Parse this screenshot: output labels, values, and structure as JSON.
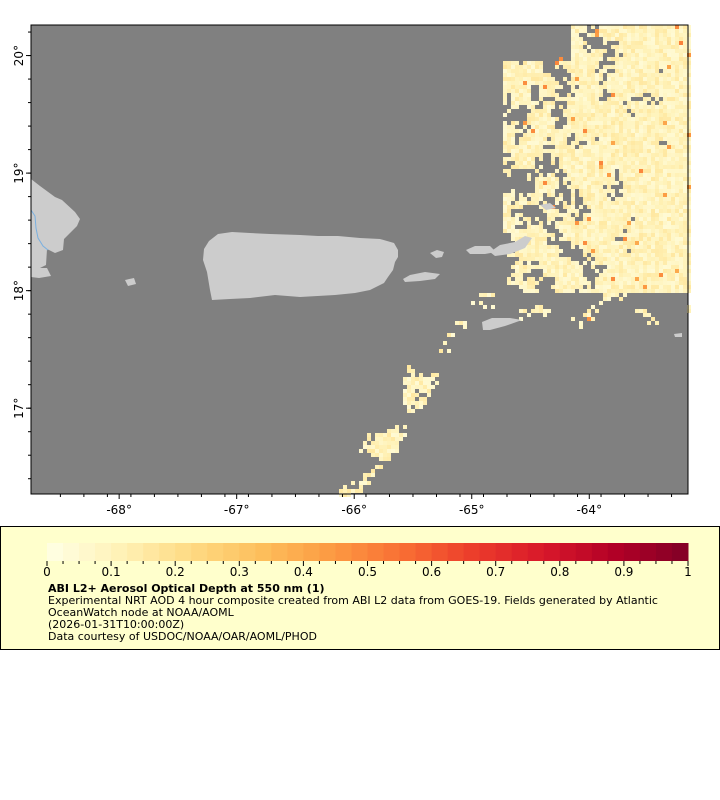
{
  "map": {
    "lon_range": [
      -68.75,
      -63.16
    ],
    "lat_range": [
      16.27,
      20.26
    ],
    "lon_ticks": [
      {
        "value": -68,
        "label": "-68°"
      },
      {
        "value": -67,
        "label": "-67°"
      },
      {
        "value": -66,
        "label": "-66°"
      },
      {
        "value": -65,
        "label": "-65°"
      },
      {
        "value": -64,
        "label": "-64°"
      }
    ],
    "lat_ticks": [
      {
        "value": 20,
        "label": "20°"
      },
      {
        "value": 19,
        "label": "19°"
      },
      {
        "value": 18,
        "label": "18°"
      },
      {
        "value": 17,
        "label": "17°"
      }
    ],
    "colors": {
      "ocean": "#808080",
      "land": "#cccccc",
      "river": "#7ab0e0",
      "legend_bg": "#ffffcc"
    }
  },
  "colorbar": {
    "range": [
      0,
      1
    ],
    "ticks": [
      {
        "value": 0,
        "label": "0"
      },
      {
        "value": 0.1,
        "label": "0.1"
      },
      {
        "value": 0.2,
        "label": "0.2"
      },
      {
        "value": 0.3,
        "label": "0.3"
      },
      {
        "value": 0.4,
        "label": "0.4"
      },
      {
        "value": 0.5,
        "label": "0.5"
      },
      {
        "value": 0.6,
        "label": "0.6"
      },
      {
        "value": 0.7,
        "label": "0.7"
      },
      {
        "value": 0.8,
        "label": "0.8"
      },
      {
        "value": 0.9,
        "label": "0.9"
      },
      {
        "value": 1,
        "label": "1"
      }
    ],
    "palette": [
      "#ffffe5",
      "#fff2b8",
      "#fedb84",
      "#fdbf5c",
      "#fc9a42",
      "#f96e34",
      "#ec3c2b",
      "#d7172a",
      "#b10026",
      "#800026"
    ]
  },
  "legend": {
    "title": "ABI L2+ Aerosol Optical Depth at 550 nm (1)",
    "line1": "Experimental NRT AOD 4 hour composite created from ABI L2 data from GOES-19. Fields generated by Atlantic",
    "line2": "OceanWatch node at NOAA/AOML",
    "line3": "(2026-01-31T10:00:00Z)",
    "line4": "Data courtesy of USDOC/NOAA/OAR/AOML/PHOD"
  }
}
